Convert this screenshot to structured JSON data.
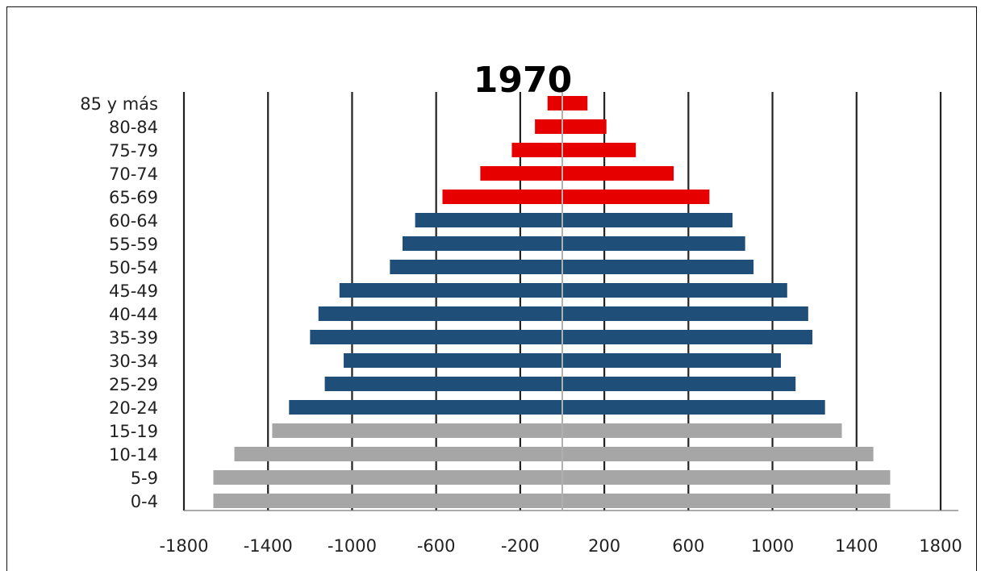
{
  "chart_data": {
    "type": "bar",
    "orientation": "horizontal",
    "subtype": "population-pyramid",
    "title": "1970",
    "categories": [
      "85 y más",
      "80-84",
      "75-79",
      "70-74",
      "65-69",
      "60-64",
      "55-59",
      "50-54",
      "45-49",
      "40-44",
      "35-39",
      "30-34",
      "25-29",
      "20-24",
      "15-19",
      "10-14",
      "5-9",
      "0-4"
    ],
    "left_values": [
      -70,
      -130,
      -240,
      -390,
      -570,
      -700,
      -760,
      -820,
      -1060,
      -1160,
      -1200,
      -1040,
      -1130,
      -1300,
      -1380,
      -1560,
      -1660,
      -1660
    ],
    "right_values": [
      120,
      210,
      350,
      530,
      700,
      810,
      870,
      910,
      1070,
      1170,
      1190,
      1040,
      1110,
      1250,
      1330,
      1480,
      1560,
      1560
    ],
    "bar_colors": [
      "#e60000",
      "#e60000",
      "#e60000",
      "#e60000",
      "#e60000",
      "#1f4e79",
      "#1f4e79",
      "#1f4e79",
      "#1f4e79",
      "#1f4e79",
      "#1f4e79",
      "#1f4e79",
      "#1f4e79",
      "#1f4e79",
      "#a6a6a6",
      "#a6a6a6",
      "#a6a6a6",
      "#a6a6a6"
    ],
    "xlim": [
      -1800,
      1800
    ],
    "xticks": [
      -1800,
      -1400,
      -1000,
      -600,
      -200,
      200,
      600,
      1000,
      1400,
      1800
    ],
    "xtick_labels": [
      "-1800",
      "-1400",
      "-1000",
      "-600",
      "-200",
      "200",
      "600",
      "1000",
      "1400",
      "1800"
    ],
    "gridlines": "vertical",
    "gridline_color": "#222222",
    "center_line_color": "#b0b0b0"
  }
}
